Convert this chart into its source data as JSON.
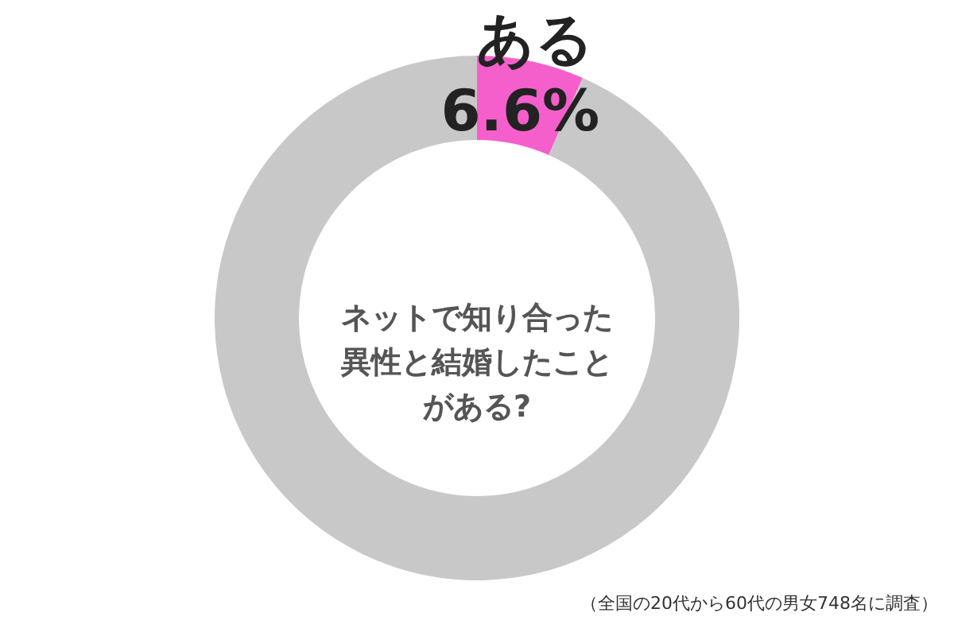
{
  "chart_data": {
    "type": "donut",
    "title": "ネットで知り合った異性と結婚したことがある?",
    "categories": [
      "ある",
      null
    ],
    "values": [
      6.6,
      93.4
    ],
    "colors": [
      "#f55fcb",
      "#c8c8c8"
    ],
    "value_labels": [
      "6.6%",
      null
    ],
    "annotations": [
      "（全国の20代から60代の男女748名に調査）"
    ]
  }
}
